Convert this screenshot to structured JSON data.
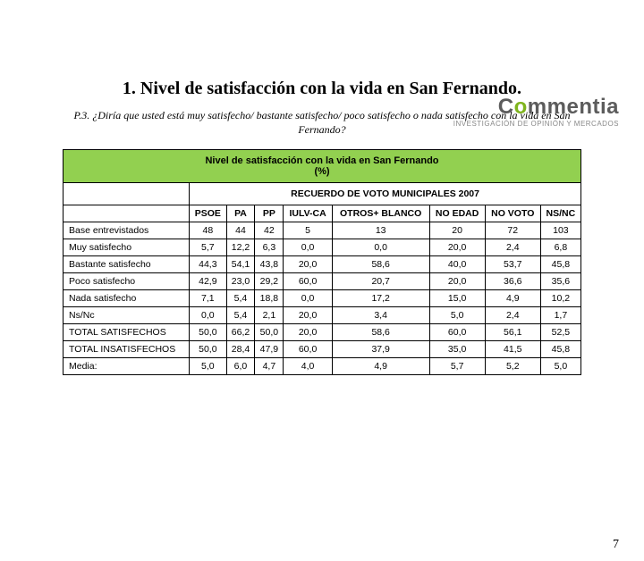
{
  "logo": {
    "name_pre": "C",
    "name_dot": "o",
    "name_post": "mmentia",
    "dot_color": "#7fb41e",
    "text_color": "#5c5c5c",
    "tagline": "INVESTIGACIÓN DE OPINIÓN Y MERCADOS"
  },
  "section_title": "1. Nivel de satisfacción con la vida en San Fernando.",
  "question": "P.3. ¿Diría que usted está muy satisfecho/ bastante satisfecho/ poco satisfecho o nada satisfecho con la vida en San Fernando?",
  "table": {
    "title_line1": "Nivel de satisfacción con la vida en San Fernando",
    "title_line2": "(%)",
    "recuerdo_header": "RECUERDO DE VOTO MUNICIPALES 2007",
    "columns": [
      "PSOE",
      "PA",
      "PP",
      "IULV-CA",
      "OTROS+ BLANCO",
      "NO EDAD",
      "NO VOTO",
      "NS/NC"
    ],
    "rows": [
      {
        "label": "Base entrevistados",
        "vals": [
          "48",
          "44",
          "42",
          "5",
          "13",
          "20",
          "72",
          "103"
        ]
      },
      {
        "label": "Muy satisfecho",
        "vals": [
          "5,7",
          "12,2",
          "6,3",
          "0,0",
          "0,0",
          "20,0",
          "2,4",
          "6,8"
        ]
      },
      {
        "label": "Bastante satisfecho",
        "vals": [
          "44,3",
          "54,1",
          "43,8",
          "20,0",
          "58,6",
          "40,0",
          "53,7",
          "45,8"
        ]
      },
      {
        "label": "Poco satisfecho",
        "vals": [
          "42,9",
          "23,0",
          "29,2",
          "60,0",
          "20,7",
          "20,0",
          "36,6",
          "35,6"
        ]
      },
      {
        "label": "Nada satisfecho",
        "vals": [
          "7,1",
          "5,4",
          "18,8",
          "0,0",
          "17,2",
          "15,0",
          "4,9",
          "10,2"
        ]
      },
      {
        "label": "Ns/Nc",
        "vals": [
          "0,0",
          "5,4",
          "2,1",
          "20,0",
          "3,4",
          "5,0",
          "2,4",
          "1,7"
        ]
      },
      {
        "label": "TOTAL SATISFECHOS",
        "vals": [
          "50,0",
          "66,2",
          "50,0",
          "20,0",
          "58,6",
          "60,0",
          "56,1",
          "52,5"
        ]
      },
      {
        "label": "TOTAL INSATISFECHOS",
        "vals": [
          "50,0",
          "28,4",
          "47,9",
          "60,0",
          "37,9",
          "35,0",
          "41,5",
          "45,8"
        ]
      },
      {
        "label": "Media:",
        "vals": [
          "5,0",
          "6,0",
          "4,7",
          "4,0",
          "4,9",
          "5,7",
          "5,2",
          "5,0"
        ]
      }
    ],
    "header_bg": "#92d050"
  },
  "page_number": "7"
}
